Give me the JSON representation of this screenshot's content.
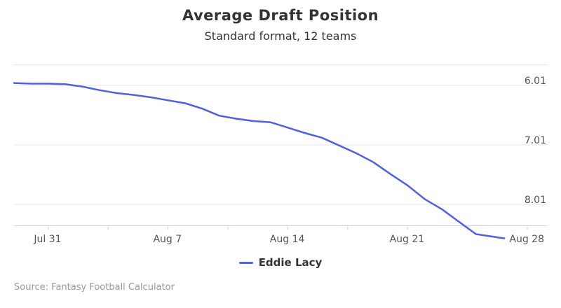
{
  "chart_data": {
    "type": "line",
    "title": "Average Draft Position",
    "subtitle": "Standard format, 12 teams",
    "xlabel": "",
    "ylabel": "",
    "y_reversed": true,
    "legend_position": "bottom-center",
    "grid": "horizontal",
    "x_ticks": [
      "Jul 31",
      "Aug 7",
      "Aug 14",
      "Aug 21",
      "Aug 28"
    ],
    "y_ticks": [
      "6.01",
      "7.01",
      "8.01"
    ],
    "x": [
      "Jul 31",
      "Aug 1",
      "Aug 2",
      "Aug 3",
      "Aug 4",
      "Aug 5",
      "Aug 6",
      "Aug 7",
      "Aug 8",
      "Aug 9",
      "Aug 10",
      "Aug 11",
      "Aug 12",
      "Aug 13",
      "Aug 14",
      "Aug 15",
      "Aug 16",
      "Aug 17",
      "Aug 18",
      "Aug 19",
      "Aug 20",
      "Aug 21",
      "Aug 22",
      "Aug 23",
      "Aug 24",
      "Aug 25",
      "Aug 26",
      "Aug 27",
      "Aug 28"
    ],
    "series": [
      {
        "name": "Eddie Lacy",
        "color": "#5060e4",
        "values": [
          5.97,
          5.98,
          5.98,
          5.99,
          6.03,
          6.09,
          6.14,
          6.17,
          6.21,
          6.26,
          6.31,
          6.4,
          6.52,
          6.57,
          6.61,
          6.63,
          6.72,
          6.81,
          6.89,
          7.02,
          7.15,
          7.3,
          7.5,
          7.69,
          7.92,
          8.09,
          8.3,
          8.51,
          8.58
        ]
      }
    ]
  },
  "credits": "Source: Fantasy Football Calculator"
}
